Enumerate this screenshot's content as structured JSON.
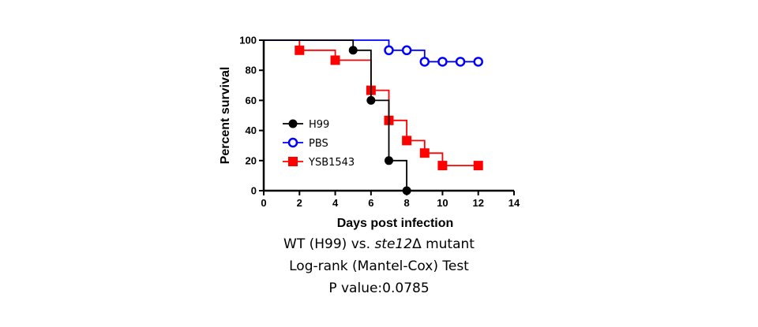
{
  "chart_data": {
    "type": "line",
    "subtype": "kaplan-meier-survival",
    "title": "",
    "xlabel": "Days post infection",
    "ylabel": "Percent survival",
    "xlim": [
      0,
      14
    ],
    "ylim": [
      0,
      100
    ],
    "xticks": [
      0,
      2,
      4,
      6,
      8,
      10,
      12,
      14
    ],
    "yticks": [
      0,
      20,
      40,
      60,
      80,
      100
    ],
    "grid": false,
    "legend_position": "center-left",
    "series": [
      {
        "name": "H99",
        "color": "#000000",
        "marker": "filled-circle",
        "steps": [
          [
            0,
            100
          ],
          [
            5,
            100
          ],
          [
            5,
            93.3
          ],
          [
            6,
            93.3
          ],
          [
            6,
            60
          ],
          [
            7,
            60
          ],
          [
            7,
            20
          ],
          [
            8,
            20
          ],
          [
            8,
            0
          ]
        ],
        "markers": [
          [
            5,
            93.3
          ],
          [
            6,
            60
          ],
          [
            7,
            20
          ],
          [
            8,
            0
          ]
        ]
      },
      {
        "name": "PBS",
        "color": "#0000ff",
        "marker": "open-circle",
        "steps": [
          [
            0,
            100
          ],
          [
            7,
            100
          ],
          [
            7,
            93.3
          ],
          [
            9,
            93.3
          ],
          [
            9,
            85.7
          ],
          [
            12,
            85.7
          ]
        ],
        "markers": [
          [
            7,
            93.3
          ],
          [
            8,
            93.3
          ],
          [
            9,
            85.7
          ],
          [
            10,
            85.7
          ],
          [
            11,
            85.7
          ],
          [
            12,
            85.7
          ]
        ]
      },
      {
        "name": "YSB1543",
        "color": "#ff0000",
        "marker": "filled-square",
        "steps": [
          [
            0,
            100
          ],
          [
            2,
            100
          ],
          [
            2,
            93.3
          ],
          [
            4,
            93.3
          ],
          [
            4,
            86.7
          ],
          [
            6,
            86.7
          ],
          [
            6,
            66.7
          ],
          [
            7,
            66.7
          ],
          [
            7,
            46.7
          ],
          [
            8,
            46.7
          ],
          [
            8,
            33.3
          ],
          [
            9,
            33.3
          ],
          [
            9,
            25
          ],
          [
            10,
            25
          ],
          [
            10,
            16.7
          ],
          [
            12,
            16.7
          ]
        ],
        "markers": [
          [
            2,
            93.3
          ],
          [
            4,
            86.7
          ],
          [
            6,
            66.7
          ],
          [
            7,
            46.7
          ],
          [
            8,
            33.3
          ],
          [
            9,
            25
          ],
          [
            10,
            16.7
          ],
          [
            12,
            16.7
          ]
        ]
      }
    ]
  },
  "caption": {
    "line1_prefix": "WT (H99) vs. ",
    "line1_italic": "ste12",
    "line1_suffix": "Δ mutant",
    "line2": "Log-rank (Mantel-Cox) Test",
    "line3": "P value:0.0785"
  }
}
